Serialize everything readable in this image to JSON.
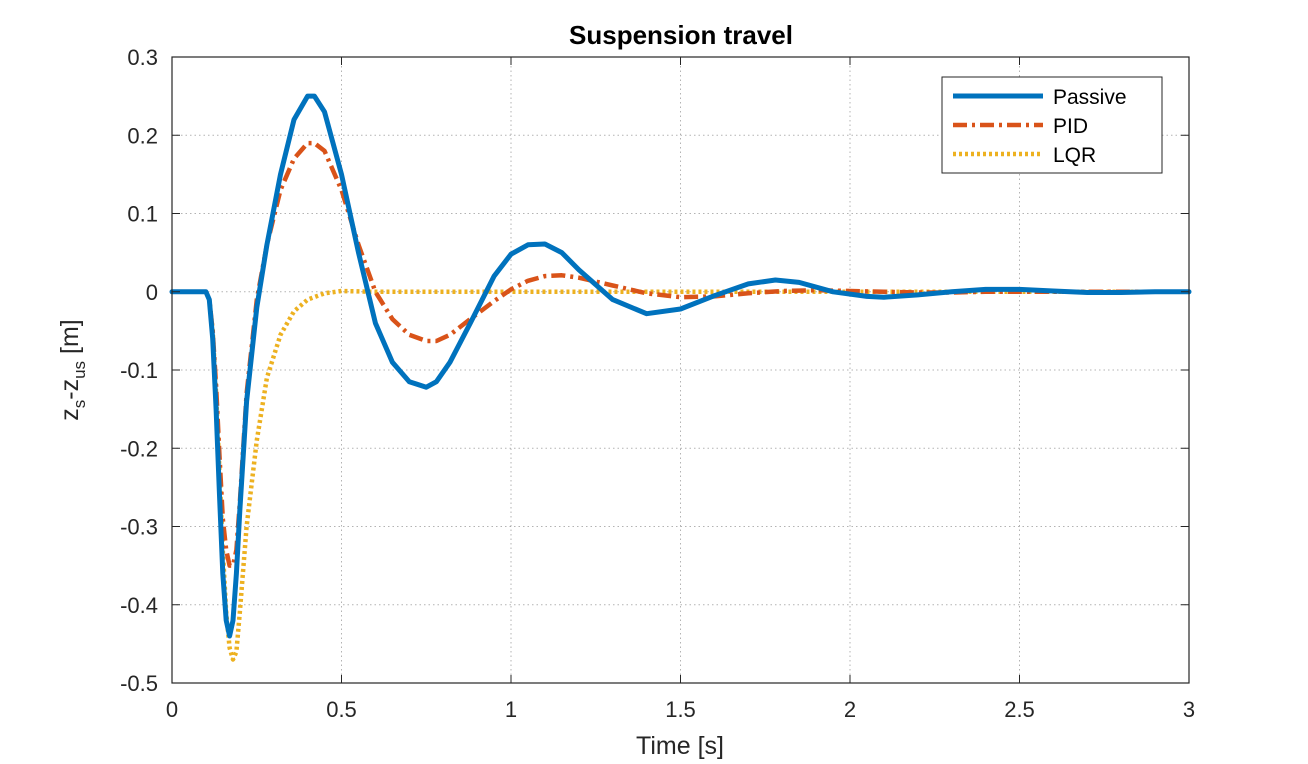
{
  "chart_data": {
    "type": "line",
    "title": "Suspension travel",
    "xlabel": "Time [s]",
    "ylabel": {
      "base": "z",
      "sub1": "s",
      "sep": "-z",
      "sub2": "us",
      "unit": " [m]"
    },
    "xlim": [
      0,
      3
    ],
    "ylim": [
      -0.5,
      0.3
    ],
    "xticks": [
      0,
      0.5,
      1,
      1.5,
      2,
      2.5,
      3
    ],
    "xtick_labels": [
      "0",
      "0.5",
      "1",
      "1.5",
      "2",
      "2.5",
      "3"
    ],
    "yticks": [
      0.3,
      0.2,
      0.1,
      0,
      -0.1,
      -0.2,
      -0.3,
      -0.4,
      -0.5
    ],
    "ytick_labels": [
      "0.3",
      "0.2",
      "0.1",
      "0",
      "-0.1",
      "-0.2",
      "-0.3",
      "-0.4",
      "-0.5"
    ],
    "grid": true,
    "legend_position": "top-right",
    "series": [
      {
        "name": "Passive",
        "color": "#0072BD",
        "style": "solid",
        "x": [
          0,
          0.1,
          0.11,
          0.12,
          0.13,
          0.14,
          0.15,
          0.16,
          0.17,
          0.18,
          0.19,
          0.2,
          0.22,
          0.25,
          0.28,
          0.32,
          0.36,
          0.4,
          0.42,
          0.45,
          0.5,
          0.55,
          0.6,
          0.65,
          0.7,
          0.75,
          0.78,
          0.82,
          0.88,
          0.95,
          1.0,
          1.05,
          1.1,
          1.15,
          1.2,
          1.3,
          1.4,
          1.5,
          1.6,
          1.7,
          1.78,
          1.85,
          1.95,
          2.05,
          2.1,
          2.2,
          2.3,
          2.4,
          2.5,
          2.6,
          2.7,
          2.8,
          2.9,
          3.0
        ],
        "y": [
          0,
          0,
          -0.01,
          -0.06,
          -0.15,
          -0.26,
          -0.36,
          -0.42,
          -0.44,
          -0.42,
          -0.36,
          -0.28,
          -0.14,
          -0.02,
          0.06,
          0.15,
          0.22,
          0.25,
          0.25,
          0.23,
          0.15,
          0.05,
          -0.04,
          -0.09,
          -0.115,
          -0.122,
          -0.115,
          -0.09,
          -0.04,
          0.02,
          0.048,
          0.06,
          0.061,
          0.05,
          0.028,
          -0.01,
          -0.028,
          -0.022,
          -0.005,
          0.01,
          0.015,
          0.012,
          0.0,
          -0.006,
          -0.007,
          -0.004,
          0.0,
          0.003,
          0.003,
          0.001,
          -0.001,
          -0.001,
          0.0,
          0.0
        ]
      },
      {
        "name": "PID",
        "color": "#D95319",
        "style": "dashdot",
        "x": [
          0,
          0.1,
          0.11,
          0.12,
          0.13,
          0.14,
          0.15,
          0.16,
          0.17,
          0.18,
          0.19,
          0.2,
          0.22,
          0.25,
          0.28,
          0.32,
          0.36,
          0.4,
          0.42,
          0.45,
          0.5,
          0.55,
          0.6,
          0.65,
          0.7,
          0.75,
          0.78,
          0.82,
          0.88,
          0.95,
          1.0,
          1.05,
          1.1,
          1.15,
          1.2,
          1.3,
          1.4,
          1.5,
          1.6,
          1.7,
          1.8,
          1.9,
          2.0,
          2.1,
          2.2,
          2.3,
          2.4,
          2.5,
          2.6,
          2.7,
          2.8,
          2.9,
          3.0
        ],
        "y": [
          0,
          0,
          -0.01,
          -0.05,
          -0.12,
          -0.21,
          -0.29,
          -0.33,
          -0.35,
          -0.35,
          -0.33,
          -0.27,
          -0.13,
          -0.01,
          0.06,
          0.13,
          0.17,
          0.19,
          0.19,
          0.18,
          0.13,
          0.06,
          0.0,
          -0.035,
          -0.055,
          -0.063,
          -0.063,
          -0.055,
          -0.035,
          -0.012,
          0.003,
          0.014,
          0.02,
          0.021,
          0.018,
          0.008,
          -0.002,
          -0.007,
          -0.006,
          -0.002,
          0.001,
          0.002,
          0.001,
          0.0,
          -0.001,
          -0.001,
          0.0,
          0.0,
          0.0,
          0.0,
          0.0,
          0.0,
          0.0
        ]
      },
      {
        "name": "LQR",
        "color": "#EDB120",
        "style": "dotted",
        "x": [
          0,
          0.1,
          0.11,
          0.12,
          0.13,
          0.14,
          0.15,
          0.16,
          0.17,
          0.18,
          0.19,
          0.2,
          0.22,
          0.25,
          0.28,
          0.32,
          0.36,
          0.4,
          0.45,
          0.5,
          0.6,
          0.8,
          1.0,
          1.5,
          2.0,
          2.5,
          3.0
        ],
        "y": [
          0,
          0,
          -0.01,
          -0.05,
          -0.13,
          -0.23,
          -0.33,
          -0.41,
          -0.455,
          -0.47,
          -0.46,
          -0.41,
          -0.3,
          -0.19,
          -0.11,
          -0.055,
          -0.025,
          -0.01,
          -0.002,
          0.001,
          0.0,
          0.0,
          0.0,
          0.0,
          0.0,
          0.0,
          0.0
        ]
      }
    ]
  }
}
